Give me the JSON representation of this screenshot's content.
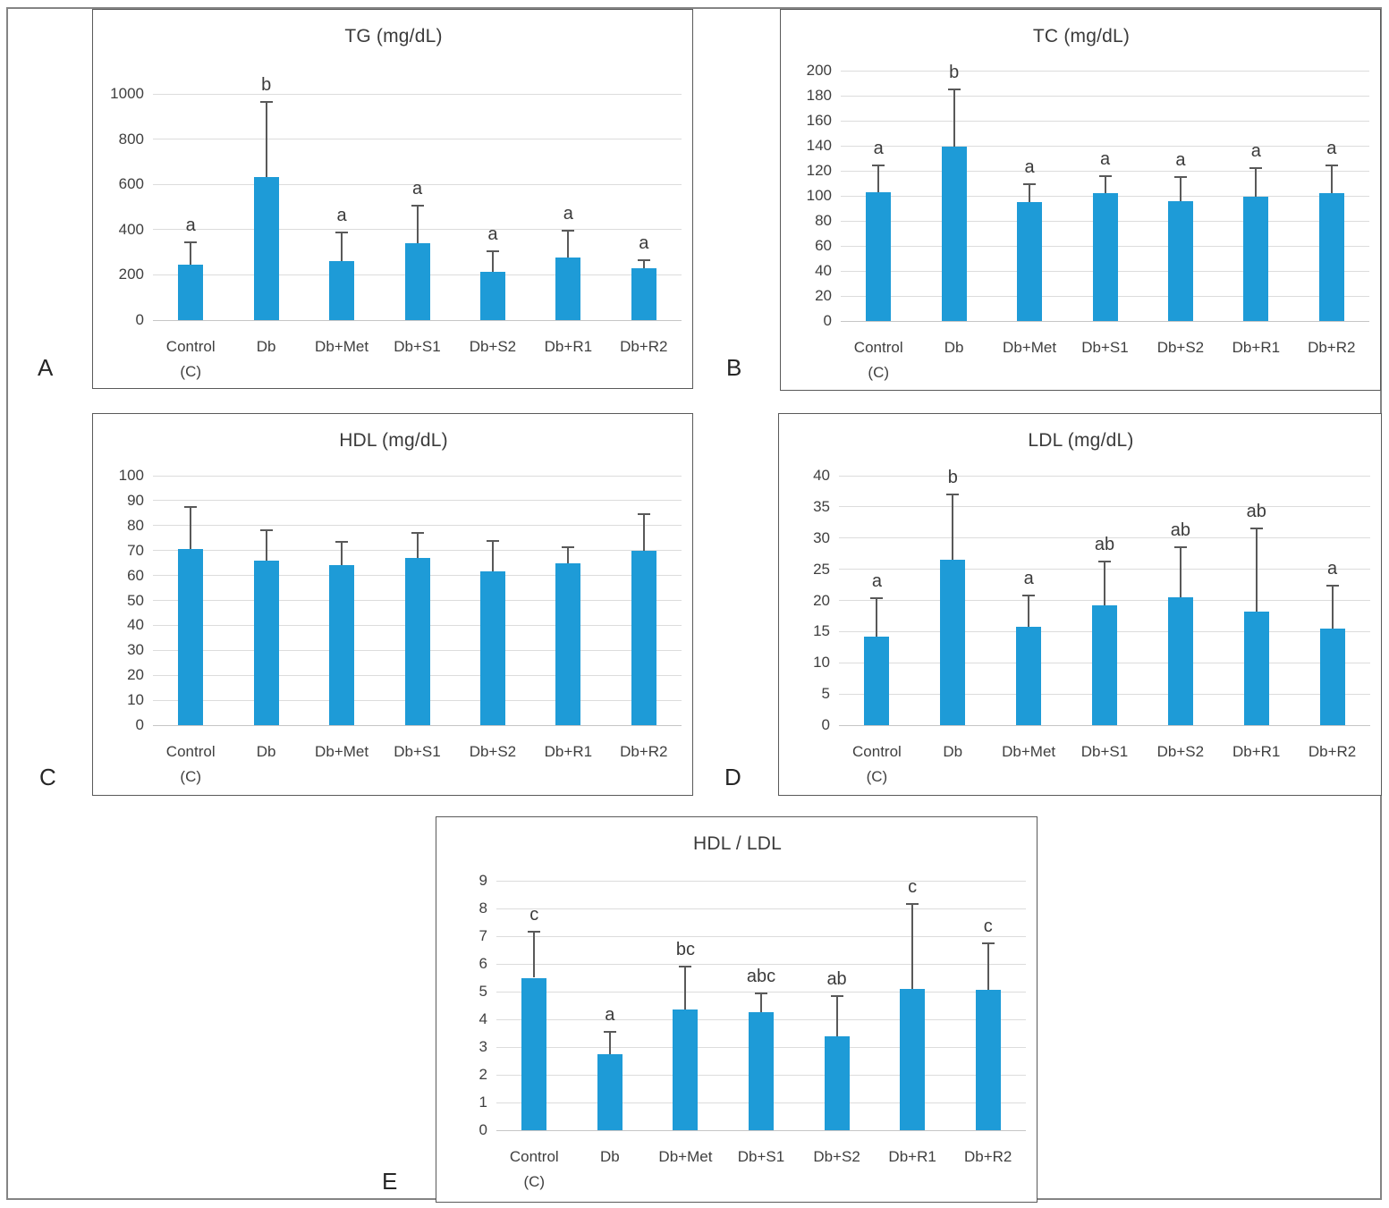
{
  "figure": {
    "panel_labels": [
      "A",
      "B",
      "C",
      "D",
      "E"
    ]
  },
  "colors": {
    "bar": "#1E9BD7",
    "error_bar": "#595959",
    "gridline": "#DCDCDC",
    "axis_line": "#C6C6C6",
    "text": "#3F3F3F",
    "panel_border": "#595959",
    "outer_border": "#848484"
  },
  "chart_data": [
    {
      "panel": "A",
      "type": "bar",
      "title": "TG (mg/dL)",
      "xlabel": "",
      "ylabel": "",
      "categories": [
        "Control\n(C)",
        "Db",
        "Db+Met",
        "Db+S1",
        "Db+S2",
        "Db+R1",
        "Db+R2"
      ],
      "values": [
        245,
        634,
        260,
        338,
        213,
        277,
        228
      ],
      "error_plus": [
        98,
        330,
        128,
        167,
        90,
        119,
        38
      ],
      "sig_letters": [
        "a",
        "b",
        "a",
        "a",
        "a",
        "a",
        "a"
      ],
      "yticks": [
        "0",
        "200",
        "400",
        "600",
        "800",
        "1000"
      ],
      "ylim": [
        0,
        1000
      ],
      "grid": true,
      "legend": "none"
    },
    {
      "panel": "B",
      "type": "bar",
      "title": "TC (mg/dL)",
      "xlabel": "",
      "ylabel": "",
      "categories": [
        "Control\n(C)",
        "Db",
        "Db+Met",
        "Db+S1",
        "Db+S2",
        "Db+R1",
        "Db+R2"
      ],
      "values": [
        103,
        139,
        95,
        102,
        96,
        99,
        102
      ],
      "error_plus": [
        21,
        46,
        14,
        14,
        19,
        23,
        22
      ],
      "sig_letters": [
        "a",
        "b",
        "a",
        "a",
        "a",
        "a",
        "a"
      ],
      "yticks": [
        "0",
        "20",
        "40",
        "60",
        "80",
        "100",
        "120",
        "140",
        "160",
        "180",
        "200"
      ],
      "ylim": [
        0,
        200
      ],
      "grid": true,
      "legend": "none"
    },
    {
      "panel": "C",
      "type": "bar",
      "title": "HDL (mg/dL)",
      "xlabel": "",
      "ylabel": "",
      "categories": [
        "Control\n(C)",
        "Db",
        "Db+Met",
        "Db+S1",
        "Db+S2",
        "Db+R1",
        "Db+R2"
      ],
      "values": [
        70.5,
        66,
        64,
        67,
        61.5,
        65,
        70
      ],
      "error_plus": [
        17,
        12,
        9.5,
        10,
        12.5,
        6.5,
        14.5
      ],
      "sig_letters": [
        "",
        "",
        "",
        "",
        "",
        "",
        ""
      ],
      "yticks": [
        "0",
        "10",
        "20",
        "30",
        "40",
        "50",
        "60",
        "70",
        "80",
        "90",
        "100"
      ],
      "ylim": [
        0,
        100
      ],
      "grid": true,
      "legend": "none"
    },
    {
      "panel": "D",
      "type": "bar",
      "title": "LDL (mg/dL)",
      "xlabel": "",
      "ylabel": "",
      "categories": [
        "Control\n(C)",
        "Db",
        "Db+Met",
        "Db+S1",
        "Db+S2",
        "Db+R1",
        "Db+R2"
      ],
      "values": [
        14.2,
        26.5,
        15.7,
        19.2,
        20.5,
        18.2,
        15.5
      ],
      "error_plus": [
        6.2,
        10.5,
        5.1,
        7.1,
        8.1,
        13.4,
        6.9
      ],
      "sig_letters": [
        "a",
        "b",
        "a",
        "ab",
        "ab",
        "ab",
        "a"
      ],
      "yticks": [
        "0",
        "5",
        "10",
        "15",
        "20",
        "25",
        "30",
        "35",
        "40"
      ],
      "ylim": [
        0,
        40
      ],
      "grid": true,
      "legend": "none"
    },
    {
      "panel": "E",
      "type": "bar",
      "title": "HDL / LDL",
      "xlabel": "",
      "ylabel": "",
      "categories": [
        "Control\n(C)",
        "Db",
        "Db+Met",
        "Db+S1",
        "Db+S2",
        "Db+R1",
        "Db+R2"
      ],
      "values": [
        5.5,
        2.75,
        4.35,
        4.25,
        3.4,
        5.1,
        5.05
      ],
      "error_plus": [
        1.65,
        0.8,
        1.55,
        0.7,
        1.45,
        3.05,
        1.7
      ],
      "sig_letters": [
        "c",
        "a",
        "bc",
        "abc",
        "ab",
        "c",
        "c"
      ],
      "yticks": [
        "0",
        "1",
        "2",
        "3",
        "4",
        "5",
        "6",
        "7",
        "8",
        "9"
      ],
      "ylim": [
        0,
        9
      ],
      "grid": true,
      "legend": "none"
    }
  ]
}
